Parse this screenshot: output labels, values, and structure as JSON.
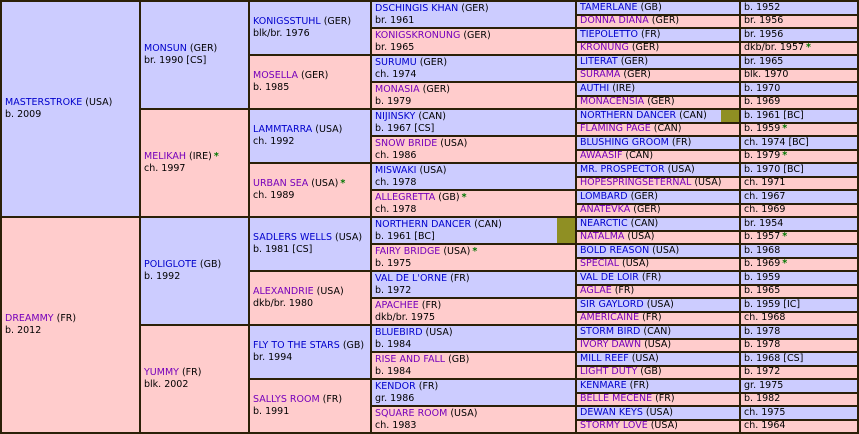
{
  "colors": {
    "male-bg": "#ccccff",
    "female-bg": "#ffcccc",
    "male-link": "#0000cc",
    "female-link": "#7700bb",
    "star-color": "#007700",
    "marker-color": "#8f8f23",
    "border-color": "#2b2008"
  },
  "cells": {
    "masterstroke": {
      "name": "MASTERSTROKE",
      "country": "(USA)",
      "info": "b. 2009"
    },
    "dreammy": {
      "name": "DREAMMY",
      "country": "(FR)",
      "info": "b. 2012"
    },
    "monsun": {
      "name": "MONSUN",
      "country": "(GER)",
      "info": "br. 1990 [CS]"
    },
    "melikah": {
      "name": "MELIKAH",
      "country": "(IRE)",
      "star_name": "*",
      "info": "ch. 1997"
    },
    "poliglote": {
      "name": "POLIGLOTE",
      "country": "(GB)",
      "info": "b. 1992"
    },
    "yummy": {
      "name": "YUMMY",
      "country": "(FR)",
      "info": "blk. 2002"
    },
    "konigsstuhl": {
      "name": "KONIGSSTUHL",
      "country": "(GER)",
      "info": "blk/br. 1976"
    },
    "mosella": {
      "name": "MOSELLA",
      "country": "(GER)",
      "info": "b. 1985"
    },
    "lammtarra": {
      "name": "LAMMTARRA",
      "country": "(USA)",
      "info": "ch. 1992"
    },
    "urban_sea": {
      "name": "URBAN SEA",
      "country": "(USA)",
      "star_name": "*",
      "info": "ch. 1989"
    },
    "sadlers_wells": {
      "name": "SADLERS WELLS",
      "country": "(USA)",
      "info": "b. 1981 [CS]"
    },
    "alexandrie": {
      "name": "ALEXANDRIE",
      "country": "(USA)",
      "info": "dkb/br. 1980"
    },
    "fly_to_the_stars": {
      "name": "FLY TO THE STARS",
      "country": "(GB)",
      "info": "br. 1994"
    },
    "sallys_room": {
      "name": "SALLYS ROOM",
      "country": "(FR)",
      "info": "b. 1991"
    },
    "dschingis_khan": {
      "name": "DSCHINGIS KHAN",
      "country": "(GER)",
      "info": "br. 1961"
    },
    "konigskronung": {
      "name": "KONIGSKRONUNG",
      "country": "(GER)",
      "info": "br. 1965"
    },
    "surumu": {
      "name": "SURUMU",
      "country": "(GER)",
      "info": "ch. 1974"
    },
    "monasia": {
      "name": "MONASIA",
      "country": "(GER)",
      "info": "b. 1979"
    },
    "nijinsky": {
      "name": "NIJINSKY",
      "country": "(CAN)",
      "info": "b. 1967 [CS]"
    },
    "snow_bride": {
      "name": "SNOW BRIDE",
      "country": "(USA)",
      "info": "ch. 1986"
    },
    "miswaki": {
      "name": "MISWAKI",
      "country": "(USA)",
      "info": "ch. 1978"
    },
    "allegretta": {
      "name": "ALLEGRETTA",
      "country": "(GB)",
      "star_name": "*",
      "info": "ch. 1978"
    },
    "northern_dancer": {
      "name": "NORTHERN DANCER",
      "country": "(CAN)",
      "info": "b. 1961 [BC]",
      "marker": true
    },
    "fairy_bridge": {
      "name": "FAIRY BRIDGE",
      "country": "(USA)",
      "star_name": "*",
      "info": "b. 1975"
    },
    "val_de_lorne": {
      "name": "VAL DE L'ORNE",
      "country": "(FR)",
      "info": "b. 1972"
    },
    "apachee": {
      "name": "APACHEE",
      "country": "(FR)",
      "info": "dkb/br. 1975"
    },
    "bluebird": {
      "name": "BLUEBIRD",
      "country": "(USA)",
      "info": "b. 1984"
    },
    "rise_and_fall": {
      "name": "RISE AND FALL",
      "country": "(GB)",
      "info": "b. 1984"
    },
    "kendor": {
      "name": "KENDOR",
      "country": "(FR)",
      "info": "gr. 1986"
    },
    "square_room": {
      "name": "SQUARE ROOM",
      "country": "(USA)",
      "info": "ch. 1983"
    }
  },
  "g5": [
    {
      "name": "TAMERLANE",
      "country": "(GB)",
      "info": "b. 1952"
    },
    {
      "name": "DONNA DIANA",
      "country": "(GER)",
      "info": "br. 1956"
    },
    {
      "name": "TIEPOLETTO",
      "country": "(FR)",
      "info": "br. 1956"
    },
    {
      "name": "KRONUNG",
      "country": "(GER)",
      "info": "dkb/br. 1957",
      "star_info": "*"
    },
    {
      "name": "LITERAT",
      "country": "(GER)",
      "info": "br. 1965"
    },
    {
      "name": "SURAMA",
      "country": "(GER)",
      "info": "blk. 1970"
    },
    {
      "name": "AUTHI",
      "country": "(IRE)",
      "info": "b. 1970"
    },
    {
      "name": "MONACENSIA",
      "country": "(GER)",
      "info": "b. 1969"
    },
    {
      "name": "NORTHERN DANCER",
      "country": "(CAN)",
      "info": "b. 1961 [BC]",
      "marker": true
    },
    {
      "name": "FLAMING PAGE",
      "country": "(CAN)",
      "info": "b. 1959",
      "star_info": "*"
    },
    {
      "name": "BLUSHING GROOM",
      "country": "(FR)",
      "info": "ch. 1974 [BC]"
    },
    {
      "name": "AWAASIF",
      "country": "(CAN)",
      "info": "b. 1979",
      "star_info": "*"
    },
    {
      "name": "MR. PROSPECTOR",
      "country": "(USA)",
      "info": "b. 1970 [BC]"
    },
    {
      "name": "HOPESPRINGSETERNAL",
      "country": "(USA)",
      "info": "ch. 1971"
    },
    {
      "name": "LOMBARD",
      "country": "(GER)",
      "info": "ch. 1967"
    },
    {
      "name": "ANATEVKA",
      "country": "(GER)",
      "info": "ch. 1969"
    },
    {
      "name": "NEARCTIC",
      "country": "(CAN)",
      "info": "br. 1954"
    },
    {
      "name": "NATALMA",
      "country": "(USA)",
      "info": "b. 1957",
      "star_info": "*"
    },
    {
      "name": "BOLD REASON",
      "country": "(USA)",
      "info": "b. 1968"
    },
    {
      "name": "SPECIAL",
      "country": "(USA)",
      "info": "b. 1969",
      "star_info": "*"
    },
    {
      "name": "VAL DE LOIR",
      "country": "(FR)",
      "info": "b. 1959"
    },
    {
      "name": "AGLAE",
      "country": "(FR)",
      "info": "b. 1965"
    },
    {
      "name": "SIR GAYLORD",
      "country": "(USA)",
      "info": "b. 1959 [IC]"
    },
    {
      "name": "AMERICAINE",
      "country": "(FR)",
      "info": "ch. 1968"
    },
    {
      "name": "STORM BIRD",
      "country": "(CAN)",
      "info": "b. 1978"
    },
    {
      "name": "IVORY DAWN",
      "country": "(USA)",
      "info": "b. 1978"
    },
    {
      "name": "MILL REEF",
      "country": "(USA)",
      "info": "b. 1968 [CS]"
    },
    {
      "name": "LIGHT DUTY",
      "country": "(GB)",
      "info": "b. 1972"
    },
    {
      "name": "KENMARE",
      "country": "(FR)",
      "info": "gr. 1975"
    },
    {
      "name": "BELLE MECENE",
      "country": "(FR)",
      "info": "b. 1982"
    },
    {
      "name": "DEWAN KEYS",
      "country": "(USA)",
      "info": "ch. 1975"
    },
    {
      "name": "STORMY LOVE",
      "country": "(USA)",
      "info": "ch. 1964"
    }
  ]
}
